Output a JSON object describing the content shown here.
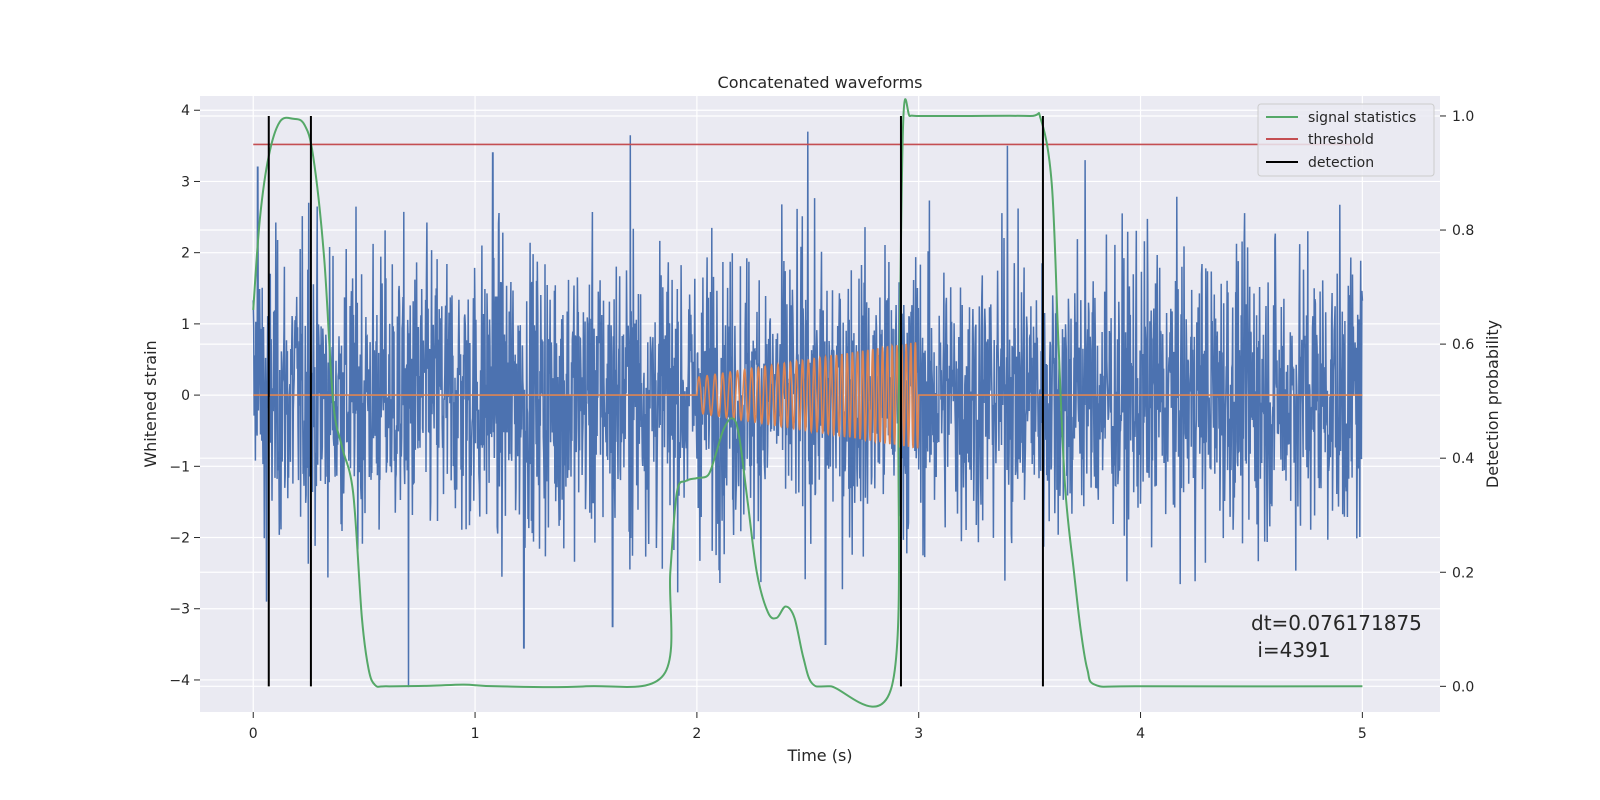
{
  "chart_data": {
    "type": "line",
    "title": "Concatenated waveforms",
    "xlabel": "Time (s)",
    "ylabel": "Whitened strain",
    "y2label": "Detection probability",
    "xlim": [
      -0.24,
      5.35
    ],
    "ylim": [
      -4.45,
      4.2
    ],
    "y2lim": [
      -0.045,
      1.035
    ],
    "xticks": [
      0,
      1,
      2,
      3,
      4,
      5
    ],
    "yticks": [
      -4,
      -3,
      -2,
      -1,
      0,
      1,
      2,
      3,
      4
    ],
    "y2ticks": [
      0.0,
      0.2,
      0.4,
      0.6,
      0.8,
      1.0
    ],
    "xtick_labels": [
      "0",
      "1",
      "2",
      "3",
      "4",
      "5"
    ],
    "ytick_labels": [
      "−4",
      "−3",
      "−2",
      "−1",
      "0",
      "1",
      "2",
      "3",
      "4"
    ],
    "y2tick_labels": [
      "0.0",
      "0.2",
      "0.4",
      "0.6",
      "0.8",
      "1.0"
    ],
    "grid": true,
    "legend_position": "top-right",
    "legend": [
      {
        "label": "signal statistics",
        "color": "#55a868"
      },
      {
        "label": "threshold",
        "color": "#c44e52"
      },
      {
        "label": "detection",
        "color": "#000000"
      }
    ],
    "series": [
      {
        "name": "strain",
        "axis": "left",
        "color": "#4c72b0",
        "x_range": [
          0,
          5
        ],
        "envelope_abs": 2.6,
        "peaks": [
          {
            "x": 0.02,
            "y": 3.2
          },
          {
            "x": 0.25,
            "y": 2.7
          },
          {
            "x": 1.7,
            "y": 3.65
          },
          {
            "x": 1.08,
            "y": 3.4
          },
          {
            "x": 2.5,
            "y": 3.7
          },
          {
            "x": 0.7,
            "y": -4.1
          },
          {
            "x": 0.06,
            "y": -2.9
          },
          {
            "x": 1.62,
            "y": -3.25
          },
          {
            "x": 2.58,
            "y": -3.5
          },
          {
            "x": 3.4,
            "y": 3.5
          },
          {
            "x": 1.22,
            "y": -3.55
          },
          {
            "x": 3.75,
            "y": 3.3
          }
        ]
      },
      {
        "name": "injected waveform",
        "axis": "left",
        "color": "#dd8452",
        "chirp": {
          "start": 2.0,
          "end": 3.0,
          "amp_start": 0.25,
          "amp_end": 0.75,
          "cycles": 38
        }
      },
      {
        "name": "signal statistics",
        "axis": "right",
        "color": "#55a868",
        "x": [
          0.0,
          0.03,
          0.07,
          0.12,
          0.18,
          0.23,
          0.27,
          0.32,
          0.36,
          0.4,
          0.45,
          0.49,
          0.52,
          0.55,
          0.6,
          0.8,
          0.95,
          1.1,
          1.5,
          1.85,
          1.88,
          1.91,
          1.95,
          2.0,
          2.05,
          2.08,
          2.12,
          2.16,
          2.19,
          2.23,
          2.27,
          2.32,
          2.36,
          2.4,
          2.44,
          2.48,
          2.52,
          2.6,
          2.88,
          2.91,
          2.93,
          2.96,
          3.0,
          3.2,
          3.5,
          3.55,
          3.6,
          3.63,
          3.66,
          3.7,
          3.73,
          3.76,
          3.8,
          4.0,
          5.0
        ],
        "y": [
          0.66,
          0.82,
          0.93,
          0.99,
          0.995,
          0.985,
          0.93,
          0.75,
          0.5,
          0.42,
          0.34,
          0.12,
          0.03,
          0.002,
          0.0,
          0.001,
          0.003,
          0.0,
          0.0,
          0.02,
          0.2,
          0.34,
          0.36,
          0.365,
          0.37,
          0.4,
          0.45,
          0.47,
          0.44,
          0.32,
          0.2,
          0.13,
          0.12,
          0.14,
          0.12,
          0.05,
          0.005,
          0.0,
          0.002,
          0.5,
          0.99,
          1.0,
          1.0,
          1.0,
          1.0,
          0.995,
          0.88,
          0.6,
          0.35,
          0.2,
          0.1,
          0.03,
          0.002,
          0.0,
          0.0
        ]
      },
      {
        "name": "threshold",
        "axis": "right",
        "color": "#c44e52",
        "x": [
          0,
          5
        ],
        "y": [
          0.95,
          0.95
        ]
      }
    ],
    "detections": {
      "color": "#000000",
      "x": [
        0.07,
        0.26,
        2.92,
        3.56
      ],
      "y_range": [
        0.0,
        1.0
      ]
    },
    "annotation": {
      "line1": "dt=0.076171875",
      "line2": " i=4391",
      "x": 4.52,
      "y": -3.25
    }
  }
}
